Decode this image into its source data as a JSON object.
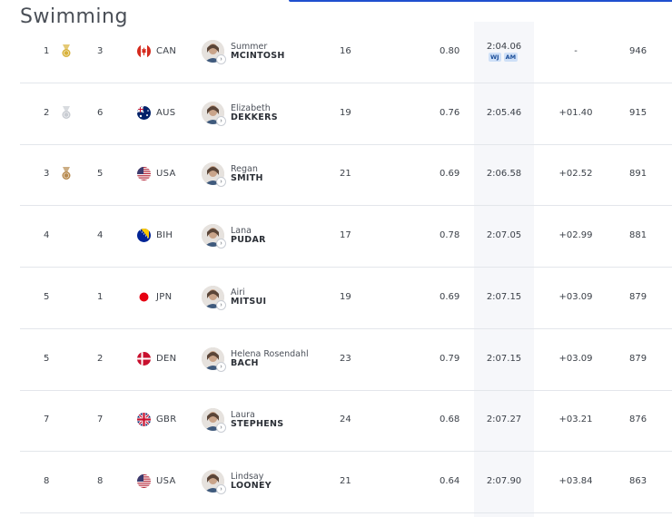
{
  "title": "Swimming",
  "rows": [
    {
      "rank": "1",
      "medal": "gold",
      "lane": "3",
      "flag": "can",
      "noc": "CAN",
      "first": "Summer",
      "last": "MCINTOSH",
      "age": "16",
      "rt": "0.80",
      "time": "2:04.06",
      "tags": [
        "WJ",
        "AM"
      ],
      "behind": "-",
      "pts": "946"
    },
    {
      "rank": "2",
      "medal": "silver",
      "lane": "6",
      "flag": "aus",
      "noc": "AUS",
      "first": "Elizabeth",
      "last": "DEKKERS",
      "age": "19",
      "rt": "0.76",
      "time": "2:05.46",
      "tags": [],
      "behind": "+01.40",
      "pts": "915"
    },
    {
      "rank": "3",
      "medal": "bronze",
      "lane": "5",
      "flag": "usa",
      "noc": "USA",
      "first": "Regan",
      "last": "SMITH",
      "age": "21",
      "rt": "0.69",
      "time": "2:06.58",
      "tags": [],
      "behind": "+02.52",
      "pts": "891"
    },
    {
      "rank": "4",
      "medal": "",
      "lane": "4",
      "flag": "bih",
      "noc": "BIH",
      "first": "Lana",
      "last": "PUDAR",
      "age": "17",
      "rt": "0.78",
      "time": "2:07.05",
      "tags": [],
      "behind": "+02.99",
      "pts": "881"
    },
    {
      "rank": "5",
      "medal": "",
      "lane": "1",
      "flag": "jpn",
      "noc": "JPN",
      "first": "Airi",
      "last": "MITSUI",
      "age": "19",
      "rt": "0.69",
      "time": "2:07.15",
      "tags": [],
      "behind": "+03.09",
      "pts": "879"
    },
    {
      "rank": "5",
      "medal": "",
      "lane": "2",
      "flag": "den",
      "noc": "DEN",
      "first": "Helena Rosendahl",
      "last": "BACH",
      "age": "23",
      "rt": "0.79",
      "time": "2:07.15",
      "tags": [],
      "behind": "+03.09",
      "pts": "879"
    },
    {
      "rank": "7",
      "medal": "",
      "lane": "7",
      "flag": "gbr",
      "noc": "GBR",
      "first": "Laura",
      "last": "STEPHENS",
      "age": "24",
      "rt": "0.68",
      "time": "2:07.27",
      "tags": [],
      "behind": "+03.21",
      "pts": "876"
    },
    {
      "rank": "8",
      "medal": "",
      "lane": "8",
      "flag": "usa",
      "noc": "USA",
      "first": "Lindsay",
      "last": "LOONEY",
      "age": "21",
      "rt": "0.64",
      "time": "2:07.90",
      "tags": [],
      "behind": "+03.84",
      "pts": "863"
    }
  ],
  "colors": {
    "accent": "#1f4fcf",
    "gold": "#d8b23a",
    "silver": "#c8ccd2",
    "bronze": "#b78a4f",
    "tag_bg": "#cfe0f7",
    "row_border": "#e3e6eb"
  },
  "icons": {
    "medal": "medal-icon",
    "profile_arrow": "arrow-right-icon"
  }
}
